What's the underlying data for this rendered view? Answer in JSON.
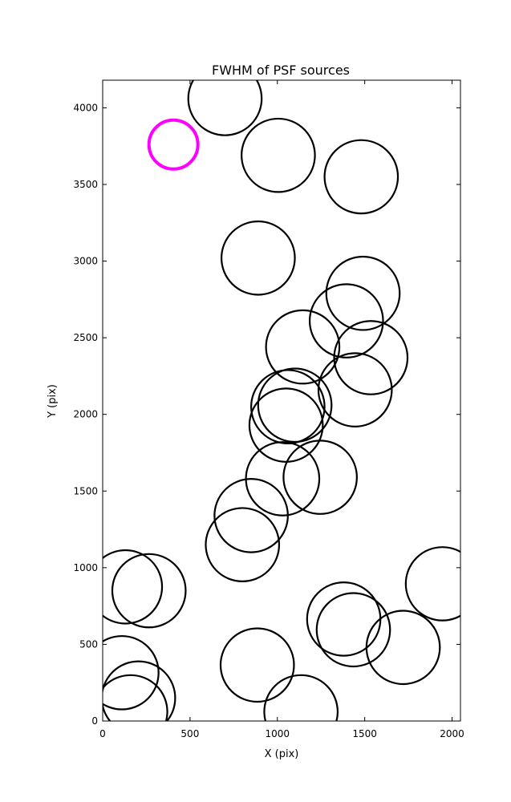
{
  "chart_data": {
    "type": "scatter",
    "title": "FWHM of PSF sources",
    "xlabel": "X (pix)",
    "ylabel": "Y (pix)",
    "xlim": [
      0,
      2048
    ],
    "ylim": [
      0,
      4180
    ],
    "xticks": [
      0,
      500,
      1000,
      1500,
      2000
    ],
    "yticks": [
      0,
      500,
      1000,
      1500,
      2000,
      2500,
      3000,
      3500,
      4000
    ],
    "grid": false,
    "marker": "open circle",
    "highlight_color": "#ff00ff",
    "default_color": "#000000",
    "points": [
      {
        "x": 700,
        "y": 4060,
        "fwhm": 210,
        "highlight": false
      },
      {
        "x": 405,
        "y": 3760,
        "fwhm": 140,
        "highlight": true
      },
      {
        "x": 1005,
        "y": 3690,
        "fwhm": 210,
        "highlight": false
      },
      {
        "x": 1480,
        "y": 3550,
        "fwhm": 210,
        "highlight": false
      },
      {
        "x": 890,
        "y": 3020,
        "fwhm": 210,
        "highlight": false
      },
      {
        "x": 1490,
        "y": 2790,
        "fwhm": 210,
        "highlight": false
      },
      {
        "x": 1395,
        "y": 2610,
        "fwhm": 210,
        "highlight": false
      },
      {
        "x": 1145,
        "y": 2440,
        "fwhm": 210,
        "highlight": false
      },
      {
        "x": 1535,
        "y": 2370,
        "fwhm": 210,
        "highlight": false
      },
      {
        "x": 1445,
        "y": 2160,
        "fwhm": 210,
        "highlight": false
      },
      {
        "x": 1100,
        "y": 2060,
        "fwhm": 210,
        "highlight": false
      },
      {
        "x": 1060,
        "y": 2050,
        "fwhm": 210,
        "highlight": false
      },
      {
        "x": 1050,
        "y": 1930,
        "fwhm": 210,
        "highlight": false
      },
      {
        "x": 1245,
        "y": 1590,
        "fwhm": 210,
        "highlight": false
      },
      {
        "x": 1030,
        "y": 1580,
        "fwhm": 210,
        "highlight": false
      },
      {
        "x": 850,
        "y": 1340,
        "fwhm": 210,
        "highlight": false
      },
      {
        "x": 800,
        "y": 1150,
        "fwhm": 210,
        "highlight": false
      },
      {
        "x": 130,
        "y": 875,
        "fwhm": 210,
        "highlight": false
      },
      {
        "x": 265,
        "y": 850,
        "fwhm": 210,
        "highlight": false
      },
      {
        "x": 1945,
        "y": 895,
        "fwhm": 210,
        "highlight": false
      },
      {
        "x": 1380,
        "y": 665,
        "fwhm": 210,
        "highlight": false
      },
      {
        "x": 1435,
        "y": 595,
        "fwhm": 210,
        "highlight": false
      },
      {
        "x": 1720,
        "y": 480,
        "fwhm": 210,
        "highlight": false
      },
      {
        "x": 885,
        "y": 365,
        "fwhm": 210,
        "highlight": false
      },
      {
        "x": 110,
        "y": 315,
        "fwhm": 210,
        "highlight": false
      },
      {
        "x": 205,
        "y": 150,
        "fwhm": 210,
        "highlight": false
      },
      {
        "x": 160,
        "y": 60,
        "fwhm": 210,
        "highlight": false
      },
      {
        "x": 1135,
        "y": 60,
        "fwhm": 210,
        "highlight": false
      }
    ]
  }
}
